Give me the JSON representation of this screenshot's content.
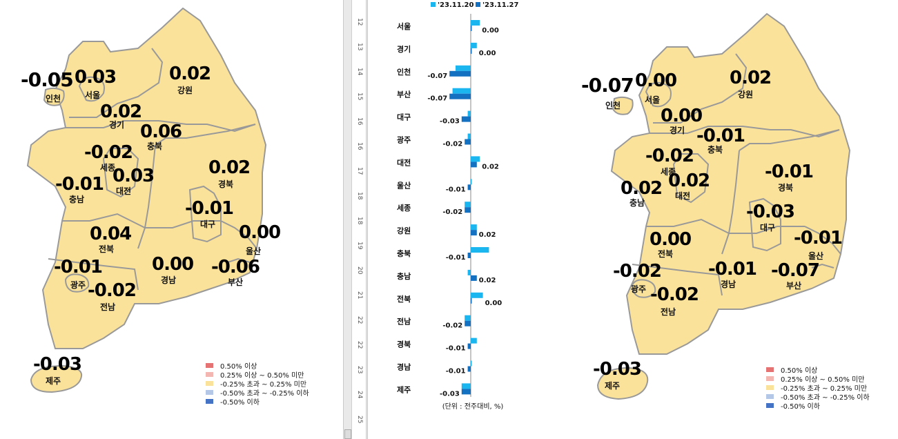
{
  "left_map": {
    "regions": [
      {
        "name": "인천",
        "value": "-0.05"
      },
      {
        "name": "서울",
        "value": "0.03"
      },
      {
        "name": "경기",
        "value": "0.02"
      },
      {
        "name": "강원",
        "value": "0.02"
      },
      {
        "name": "충북",
        "value": "0.06"
      },
      {
        "name": "세종",
        "value": "-0.02"
      },
      {
        "name": "충남",
        "value": "-0.01"
      },
      {
        "name": "대전",
        "value": "0.03"
      },
      {
        "name": "경북",
        "value": "0.02"
      },
      {
        "name": "대구",
        "value": "-0.01"
      },
      {
        "name": "울산",
        "value": "0.00"
      },
      {
        "name": "전북",
        "value": "0.04"
      },
      {
        "name": "광주",
        "value": "-0.01"
      },
      {
        "name": "경남",
        "value": "0.00"
      },
      {
        "name": "부산",
        "value": "-0.06"
      },
      {
        "name": "전남",
        "value": "-0.02"
      },
      {
        "name": "제주",
        "value": "-0.03"
      }
    ]
  },
  "right_map": {
    "regions": [
      {
        "name": "인천",
        "value": "-0.07"
      },
      {
        "name": "서울",
        "value": "0.00"
      },
      {
        "name": "경기",
        "value": "0.00"
      },
      {
        "name": "강원",
        "value": "0.02"
      },
      {
        "name": "충북",
        "value": "-0.01"
      },
      {
        "name": "세종",
        "value": "-0.02"
      },
      {
        "name": "충남",
        "value": "0.02"
      },
      {
        "name": "대전",
        "value": "0.02"
      },
      {
        "name": "경북",
        "value": "-0.01"
      },
      {
        "name": "대구",
        "value": "-0.03"
      },
      {
        "name": "울산",
        "value": "-0.01"
      },
      {
        "name": "전북",
        "value": "0.00"
      },
      {
        "name": "광주",
        "value": "-0.02"
      },
      {
        "name": "경남",
        "value": "-0.01"
      },
      {
        "name": "부산",
        "value": "-0.07"
      },
      {
        "name": "전남",
        "value": "-0.02"
      },
      {
        "name": "제주",
        "value": "-0.03"
      }
    ]
  },
  "legend": {
    "items": [
      {
        "label": "0.50% 이상",
        "color": "#e57373"
      },
      {
        "label": "0.25% 이상 ~ 0.50% 미만",
        "color": "#f4b6b0"
      },
      {
        "label": "-0.25% 초과 ~ 0.25% 미만",
        "color": "#fbe29a"
      },
      {
        "label": "-0.50% 초과 ~ -0.25% 이하",
        "color": "#b4c7e7"
      },
      {
        "label": "-0.50% 이하",
        "color": "#4472c4"
      }
    ]
  },
  "colors": {
    "map_fill": "#fbe29a",
    "map_stroke": "#999999",
    "series1": "#1bb5f0",
    "series2": "#1470c0"
  },
  "ruler": {
    "numbers": [
      "12",
      "13",
      "14",
      "15",
      "16",
      "16",
      "17",
      "18",
      "18",
      "19",
      "20",
      "21",
      "22",
      "22",
      "23",
      "24",
      "25"
    ]
  },
  "chart_data": {
    "type": "bar",
    "orientation": "horizontal",
    "unit_note": "(단위 : 전주대비, %)",
    "categories": [
      "서울",
      "경기",
      "인천",
      "부산",
      "대구",
      "광주",
      "대전",
      "울산",
      "세종",
      "강원",
      "충북",
      "충남",
      "전북",
      "전남",
      "경북",
      "경남",
      "제주"
    ],
    "series": [
      {
        "name": "'23.11.20",
        "values": [
          0.03,
          0.02,
          -0.05,
          -0.06,
          -0.01,
          -0.01,
          0.03,
          0.0,
          -0.02,
          0.02,
          0.06,
          -0.01,
          0.04,
          -0.02,
          0.02,
          0.0,
          -0.03
        ]
      },
      {
        "name": "'23.11.27",
        "values": [
          0.0,
          0.0,
          -0.07,
          -0.07,
          -0.03,
          -0.02,
          0.02,
          -0.01,
          -0.02,
          0.02,
          -0.01,
          0.02,
          0.0,
          -0.02,
          -0.01,
          -0.01,
          -0.03
        ]
      }
    ],
    "data_labels": [
      "0.00",
      "0.00",
      "-0.07",
      "-0.07",
      "-0.03",
      "-0.02",
      "0.02",
      "-0.01",
      "-0.02",
      "0.02",
      "-0.01",
      "0.02",
      "0.00",
      "-0.02",
      "-0.01",
      "-0.01",
      "-0.03"
    ]
  }
}
